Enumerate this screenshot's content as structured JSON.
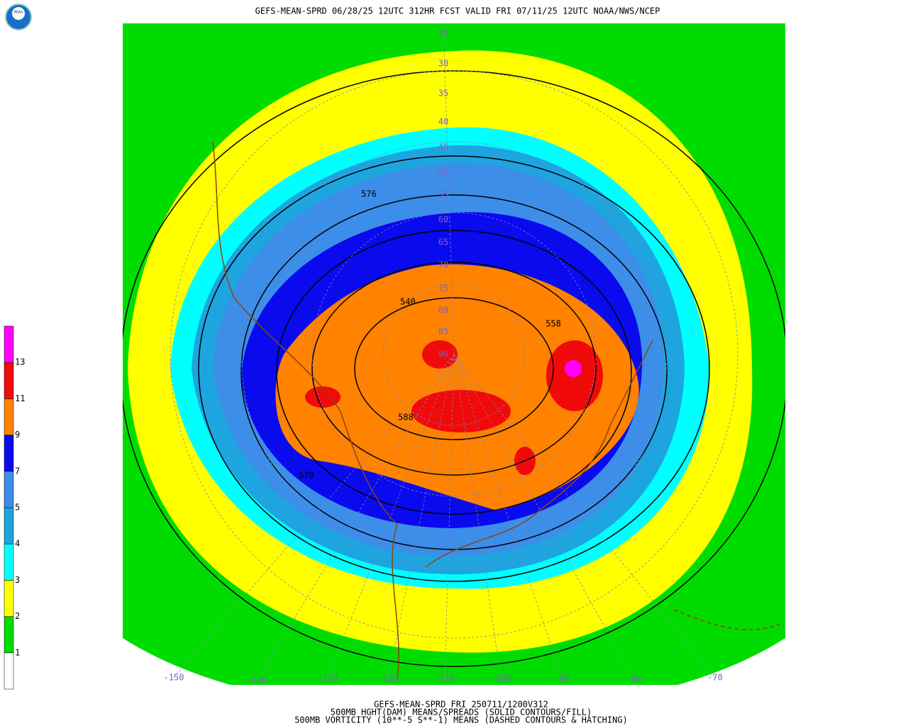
{
  "header": {
    "logo": "NOAA",
    "title": "GEFS-MEAN-SPRD 06/28/25 12UTC 312HR FCST VALID FRI 07/11/25 12UTC NOAA/NWS/NCEP"
  },
  "colorbar": {
    "labels": [
      "1",
      "2",
      "3",
      "4",
      "5",
      "7",
      "9",
      "11",
      "13"
    ],
    "colors": [
      "#ffffff",
      "#00dc00",
      "#ffff00",
      "#00ffff",
      "#1ea5e0",
      "#3c8ee8",
      "#0a0aee",
      "#ff8200",
      "#f00a0a",
      "#ff00ff"
    ]
  },
  "map": {
    "lon_labels": [
      "-150",
      "-140",
      "-130",
      "-120",
      "-110",
      "-100",
      "-90",
      "-80",
      "-70"
    ],
    "lat_labels": [
      "25",
      "30",
      "35",
      "40",
      "45",
      "50",
      "55",
      "60",
      "65",
      "70",
      "75",
      "80",
      "85",
      "90"
    ],
    "contour_labels": [
      "576",
      "540",
      "558",
      "588",
      "570"
    ]
  },
  "footer": {
    "lines": [
      "GEFS-MEAN-SPRD FRI 250711/1200V312",
      "500MB HGHT(DAM) MEANS/SPREADS (SOLID CONTOURS/FILL)",
      "500MB VORTICITY (10**-5 S**-1) MEANS (DASHED CONTOURS & HATCHING)"
    ]
  }
}
